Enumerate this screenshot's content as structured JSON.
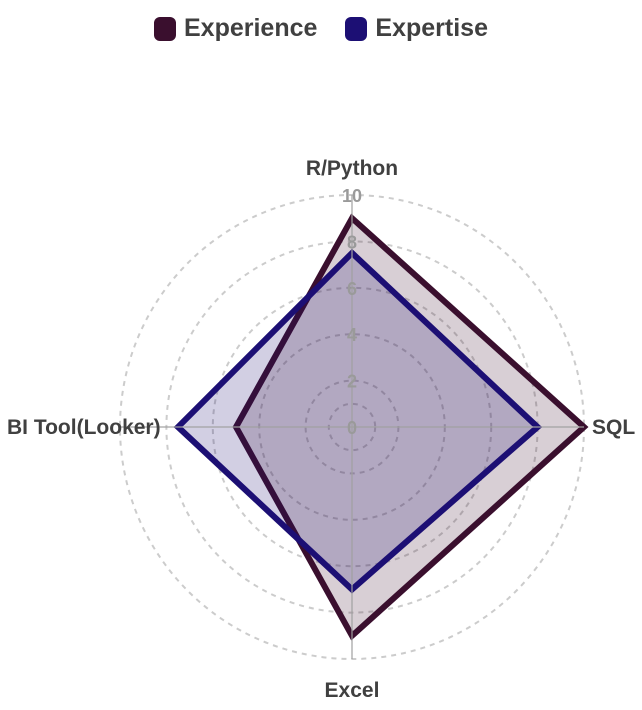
{
  "chart_data": {
    "type": "radar",
    "axes": [
      "R/Python",
      "SQL",
      "Excel",
      "BI Tool(Looker)"
    ],
    "rlim": [
      0,
      10
    ],
    "ticks": [
      "0",
      "2",
      "4",
      "6",
      "8",
      "10"
    ],
    "grid": true,
    "legend_position": "top",
    "series": [
      {
        "name": "Experience",
        "values": [
          9,
          10,
          9,
          5
        ],
        "color": "#3a0f2e",
        "fill": "rgba(58,15,46,0.2)"
      },
      {
        "name": "Expertise",
        "values": [
          7.5,
          8,
          7,
          7.5
        ],
        "color": "#1c0f74",
        "fill": "rgba(28,15,116,0.2)"
      }
    ]
  }
}
